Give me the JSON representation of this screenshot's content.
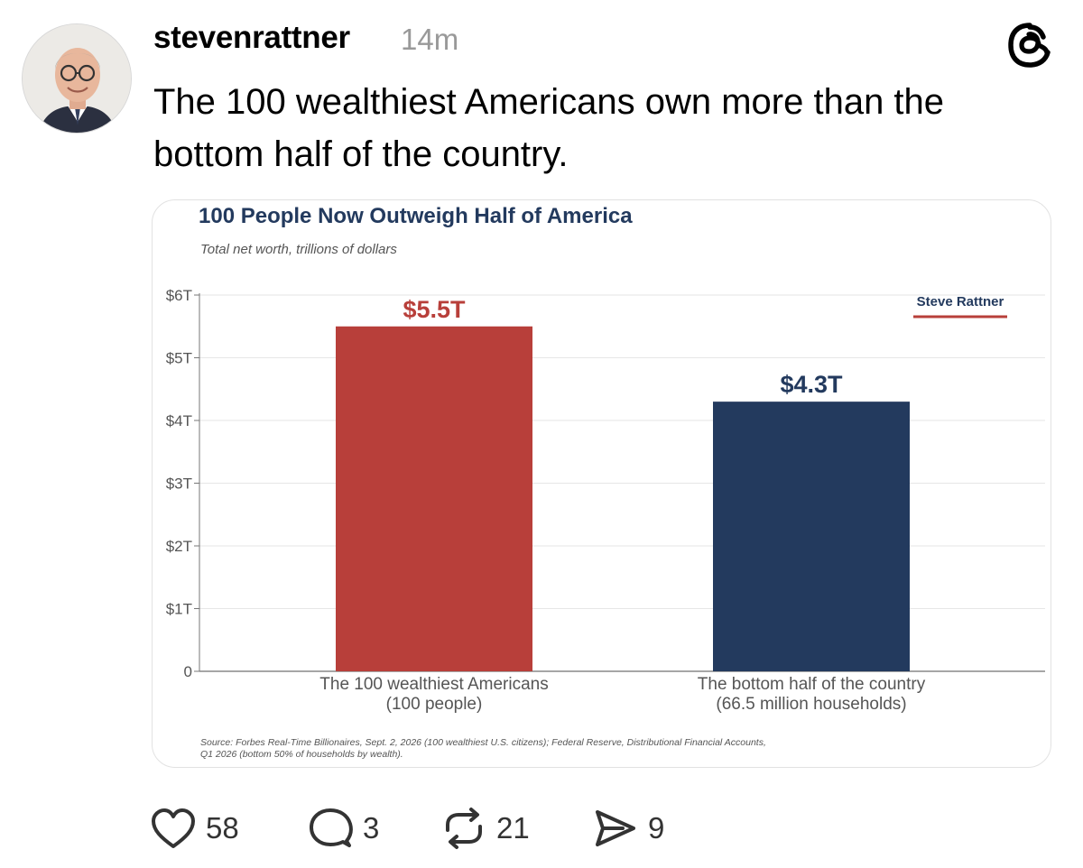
{
  "post": {
    "username": "stevenrattner",
    "time": "14m",
    "text": "The 100 wealthiest Americans own more than the bottom half of the country."
  },
  "icons": {
    "avatar": "avatar-photo",
    "brand": "threads-logo-icon",
    "like": "heart-icon",
    "reply": "comment-bubble-icon",
    "repost": "repost-icon",
    "share": "send-icon"
  },
  "actions": {
    "likes": "58",
    "replies": "3",
    "reposts": "21",
    "shares": "9"
  },
  "chart_data": {
    "type": "bar",
    "title": "100 People Now Outweigh Half of America",
    "subtitle": "Total net worth, trillions of dollars",
    "categories": [
      [
        "The 100 wealthiest Americans",
        "(100 people)"
      ],
      [
        "The bottom half of the country",
        "(66.5 million households)"
      ]
    ],
    "values": [
      5.5,
      4.3
    ],
    "data_labels": [
      "$5.5T",
      "$4.3T"
    ],
    "colors": [
      "#b83f3a",
      "#233a5e"
    ],
    "ylim": [
      0,
      6
    ],
    "yticks": [
      {
        "value": 6,
        "label": "$6T"
      },
      {
        "value": 5,
        "label": "$5T"
      },
      {
        "value": 4,
        "label": "$4T"
      },
      {
        "value": 3,
        "label": "$3T"
      },
      {
        "value": 2,
        "label": "$2T"
      },
      {
        "value": 1,
        "label": "$1T"
      },
      {
        "value": 0,
        "label": "0"
      }
    ],
    "grid": true,
    "watermark": "Steve Rattner",
    "watermark_color": "#b83f3a",
    "source": "Source: Forbes Real-Time Billionaires, Sept. 2, 2026 (100 wealthiest U.S. citizens); Federal Reserve, Distributional Financial Accounts, Q1 2026 (bottom 50% of households by wealth)."
  }
}
